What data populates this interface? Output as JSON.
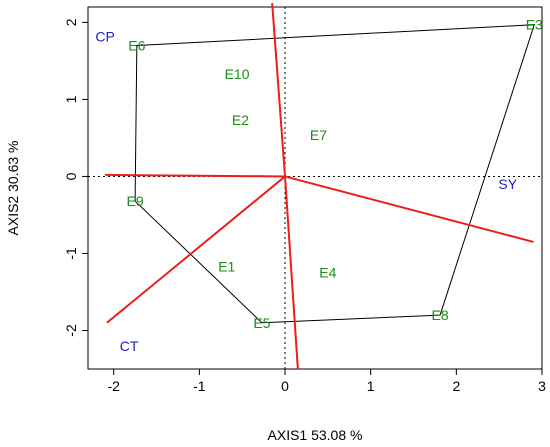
{
  "chart_data": {
    "type": "scatter",
    "subtype": "GGE biplot",
    "xlabel": "AXIS1 53.08 %",
    "ylabel": "AXIS2 30.63 %",
    "xlim": [
      -2.3,
      3.0
    ],
    "ylim": [
      -2.5,
      2.2
    ],
    "x_ticks": [
      -2,
      -1,
      0,
      1,
      2,
      3
    ],
    "y_ticks": [
      -2,
      -1,
      0,
      1,
      2
    ],
    "x_tick_labels": [
      "-2",
      "-1",
      "0",
      "1",
      "2",
      "3"
    ],
    "y_tick_labels": [
      "-2",
      "-1",
      "0",
      "1",
      "2"
    ],
    "grid": false,
    "reference_lines": {
      "x0": true,
      "y0": true,
      "style": "dotted"
    },
    "genotypes": [
      {
        "label": "E1",
        "x": -0.68,
        "y": -1.17
      },
      {
        "label": "E2",
        "x": -0.52,
        "y": 0.73
      },
      {
        "label": "E3",
        "x": 2.91,
        "y": 1.97
      },
      {
        "label": "E4",
        "x": 0.5,
        "y": -1.25
      },
      {
        "label": "E5",
        "x": -0.27,
        "y": -1.9
      },
      {
        "label": "E6",
        "x": -1.73,
        "y": 1.7
      },
      {
        "label": "E7",
        "x": 0.39,
        "y": 0.54
      },
      {
        "label": "E8",
        "x": 1.81,
        "y": -1.8
      },
      {
        "label": "E9",
        "x": -1.75,
        "y": -0.32
      },
      {
        "label": "E10",
        "x": -0.56,
        "y": 1.33
      }
    ],
    "environments": [
      {
        "label": "CP",
        "x": -2.1,
        "y": 1.82
      },
      {
        "label": "SY",
        "x": 2.6,
        "y": -0.1
      },
      {
        "label": "CT",
        "x": -1.82,
        "y": -2.2
      }
    ],
    "polygon_vertices": [
      "E6",
      "E3",
      "E8",
      "E5",
      "E9"
    ],
    "sector_rays": [
      {
        "x": -0.15,
        "y": 2.25
      },
      {
        "x": -2.1,
        "y": 0.02
      },
      {
        "x": -2.08,
        "y": -1.9
      },
      {
        "x": 0.15,
        "y": -2.5
      },
      {
        "x": 2.9,
        "y": -0.85
      }
    ],
    "colors": {
      "genotype_label": "#1a8c1a",
      "environment_label": "#1e1ecc",
      "sector_line": "#ee1c1c",
      "polygon_line": "#000000",
      "axes": "#000000"
    }
  }
}
